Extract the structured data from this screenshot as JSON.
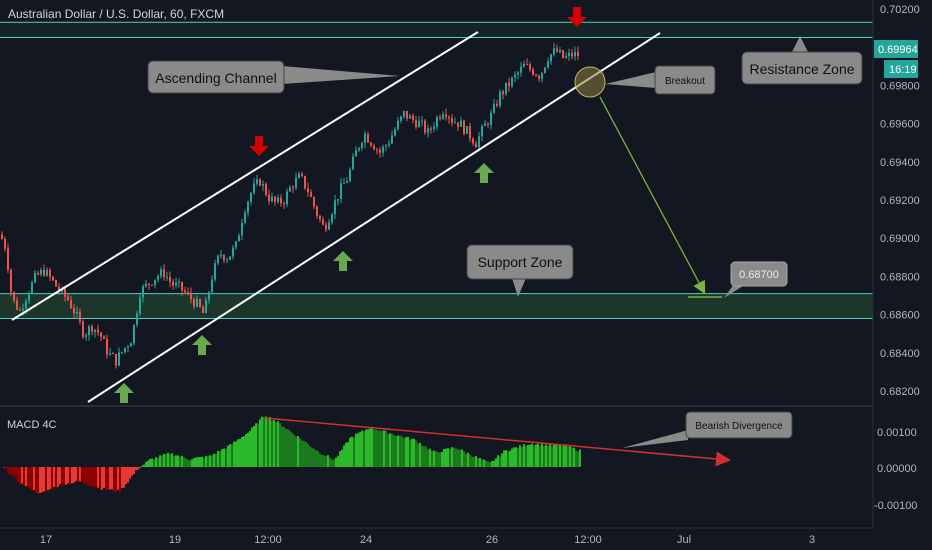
{
  "header": {
    "title": "Australian Dollar / U.S. Dollar, 60, FXCM"
  },
  "price_axis": {
    "ticks": [
      "0.70200",
      "0.69800",
      "0.69600",
      "0.69400",
      "0.69200",
      "0.69000",
      "0.68800",
      "0.68600",
      "0.68400",
      "0.68200"
    ],
    "current_price": "0.69964",
    "countdown": "16:19"
  },
  "time_axis": {
    "ticks": [
      "17",
      "19",
      "12:00",
      "24",
      "26",
      "12:00",
      "Jul",
      "3"
    ]
  },
  "annotations": {
    "ascending_channel": "Ascending Channel",
    "breakout": "Breakout",
    "resistance_zone": "Resistance Zone",
    "support_zone": "Support Zone",
    "target_price": "0.68700",
    "bearish_divergence": "Bearish Divergence"
  },
  "macd": {
    "title": "MACD 4C",
    "ticks": [
      "0.00100",
      "0.00000",
      "-0.00100"
    ]
  },
  "colors": {
    "background": "#131722",
    "up_candle": "#26a69a",
    "down_candle": "#ef5350",
    "zone_line": "#4dd0c4",
    "zone_fill": "#1e3a2c",
    "arrow_up": "#6aa84f",
    "arrow_down": "#d50000",
    "macd_pos": "#2bb82b",
    "macd_neg": "#b71c1c",
    "divergence_line": "#d32f2f"
  },
  "chart_data": {
    "type": "candlestick",
    "symbol": "AUDUSD",
    "timeframe": "60",
    "y_range": [
      0.6818,
      0.7022
    ],
    "resistance_zone": [
      0.7005,
      0.7013
    ],
    "support_zone": [
      0.6858,
      0.6871
    ],
    "target": 0.687,
    "price_path": [
      [
        0,
        0.6902
      ],
      [
        6,
        0.6895
      ],
      [
        12,
        0.6868
      ],
      [
        20,
        0.6862
      ],
      [
        28,
        0.6872
      ],
      [
        36,
        0.688
      ],
      [
        44,
        0.6883
      ],
      [
        52,
        0.6878
      ],
      [
        60,
        0.6872
      ],
      [
        68,
        0.6868
      ],
      [
        76,
        0.686
      ],
      [
        84,
        0.685
      ],
      [
        92,
        0.6854
      ],
      [
        100,
        0.685
      ],
      [
        108,
        0.684
      ],
      [
        116,
        0.6836
      ],
      [
        124,
        0.6842
      ],
      [
        132,
        0.6848
      ],
      [
        140,
        0.6872
      ],
      [
        148,
        0.6876
      ],
      [
        156,
        0.688
      ],
      [
        164,
        0.6882
      ],
      [
        172,
        0.6876
      ],
      [
        180,
        0.6874
      ],
      [
        188,
        0.687
      ],
      [
        196,
        0.6866
      ],
      [
        204,
        0.686
      ],
      [
        212,
        0.688
      ],
      [
        220,
        0.6892
      ],
      [
        228,
        0.689
      ],
      [
        236,
        0.6896
      ],
      [
        244,
        0.6915
      ],
      [
        252,
        0.6925
      ],
      [
        260,
        0.693
      ],
      [
        268,
        0.6922
      ],
      [
        276,
        0.6918
      ],
      [
        284,
        0.692
      ],
      [
        292,
        0.6928
      ],
      [
        300,
        0.6932
      ],
      [
        308,
        0.6925
      ],
      [
        316,
        0.6914
      ],
      [
        324,
        0.6905
      ],
      [
        332,
        0.6915
      ],
      [
        340,
        0.6925
      ],
      [
        348,
        0.6932
      ],
      [
        356,
        0.6945
      ],
      [
        364,
        0.6955
      ],
      [
        372,
        0.695
      ],
      [
        380,
        0.6945
      ],
      [
        388,
        0.695
      ],
      [
        396,
        0.6958
      ],
      [
        404,
        0.6965
      ],
      [
        412,
        0.6962
      ],
      [
        420,
        0.696
      ],
      [
        428,
        0.6955
      ],
      [
        436,
        0.6962
      ],
      [
        444,
        0.6968
      ],
      [
        452,
        0.6962
      ],
      [
        460,
        0.696
      ],
      [
        468,
        0.6955
      ],
      [
        476,
        0.695
      ],
      [
        484,
        0.6958
      ],
      [
        492,
        0.6965
      ],
      [
        500,
        0.6975
      ],
      [
        508,
        0.698
      ],
      [
        516,
        0.6985
      ],
      [
        524,
        0.699
      ],
      [
        532,
        0.6988
      ],
      [
        540,
        0.6985
      ],
      [
        548,
        0.6995
      ],
      [
        556,
        0.6998
      ],
      [
        564,
        0.6994
      ],
      [
        572,
        0.6996
      ],
      [
        580,
        0.6996
      ]
    ],
    "macd_path": [
      [
        4,
        -3e-05
      ],
      [
        20,
        -0.00045
      ],
      [
        40,
        -0.00075
      ],
      [
        60,
        -0.0005
      ],
      [
        80,
        -0.0004
      ],
      [
        100,
        -0.0006
      ],
      [
        120,
        -0.00068
      ],
      [
        138,
        -5e-05
      ],
      [
        150,
        0.0002
      ],
      [
        170,
        0.00038
      ],
      [
        190,
        0.00022
      ],
      [
        210,
        0.0003
      ],
      [
        230,
        0.0006
      ],
      [
        250,
        0.001
      ],
      [
        265,
        0.00145
      ],
      [
        280,
        0.0012
      ],
      [
        300,
        0.0008
      ],
      [
        320,
        0.0004
      ],
      [
        335,
        0.0002
      ],
      [
        350,
        0.0008
      ],
      [
        370,
        0.0011
      ],
      [
        395,
        0.0009
      ],
      [
        415,
        0.00075
      ],
      [
        435,
        0.0004
      ],
      [
        455,
        0.00055
      ],
      [
        470,
        0.00035
      ],
      [
        490,
        0.0001
      ],
      [
        505,
        0.00045
      ],
      [
        530,
        0.00065
      ],
      [
        550,
        0.0006
      ],
      [
        565,
        0.0006
      ],
      [
        580,
        0.00045
      ]
    ]
  }
}
